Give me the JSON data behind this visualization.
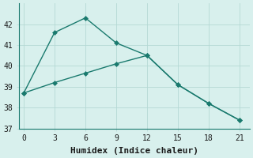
{
  "line1_x": [
    0,
    3,
    6,
    9,
    12,
    15,
    18,
    21
  ],
  "line1_y": [
    38.7,
    41.6,
    42.3,
    41.1,
    40.5,
    39.1,
    38.2,
    37.4
  ],
  "line2_x": [
    0,
    3,
    6,
    9,
    12,
    15,
    18,
    21
  ],
  "line2_y": [
    38.7,
    39.2,
    39.65,
    40.1,
    40.5,
    39.1,
    38.2,
    37.4
  ],
  "line_color": "#1a7a6e",
  "marker": "D",
  "marker_size": 3,
  "xlim": [
    -0.5,
    22
  ],
  "ylim": [
    37,
    43
  ],
  "xticks": [
    0,
    3,
    6,
    9,
    12,
    15,
    18,
    21
  ],
  "yticks": [
    37,
    38,
    39,
    40,
    41,
    42
  ],
  "xlabel": "Humidex (Indice chaleur)",
  "bg_color": "#d8f0ed",
  "grid_color": "#b5d9d5",
  "tick_fontsize": 7,
  "label_fontsize": 8,
  "line_width": 1.0
}
